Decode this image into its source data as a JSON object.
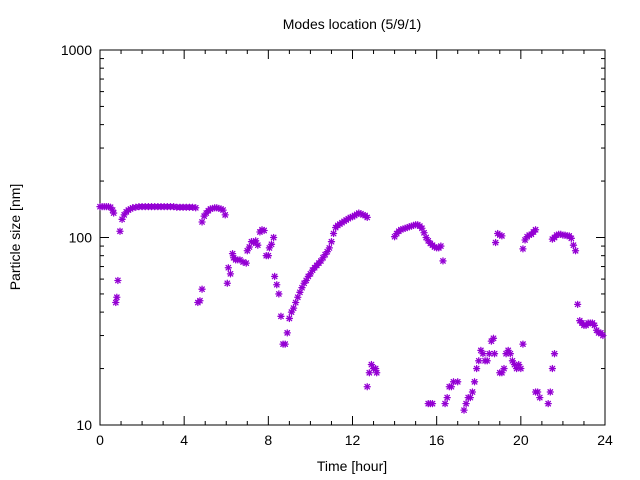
{
  "chart_data": {
    "type": "scatter",
    "title": "Modes location (5/9/1)",
    "xlabel": "Time [hour]",
    "ylabel": "Particle size [nm]",
    "xlim": [
      0,
      24
    ],
    "ylim": [
      10,
      1000
    ],
    "yscale": "log",
    "grid": false,
    "legend": "none",
    "marker_color": "#9400d3",
    "x_ticks": [
      0,
      4,
      8,
      12,
      16,
      20,
      24
    ],
    "x_tick_labels": [
      "0",
      "4",
      "8",
      "12",
      "16",
      "20",
      "24"
    ],
    "y_ticks": [
      10,
      100,
      1000
    ],
    "y_tick_labels": [
      "10",
      "100",
      "1000"
    ],
    "series": [
      {
        "points": [
          [
            0.0,
            146
          ],
          [
            0.1,
            146
          ],
          [
            0.2,
            146
          ],
          [
            0.3,
            146
          ],
          [
            0.4,
            146
          ],
          [
            0.5,
            145
          ],
          [
            0.6,
            140
          ],
          [
            0.65,
            135
          ],
          [
            0.75,
            45
          ],
          [
            0.8,
            48
          ],
          [
            0.85,
            59
          ],
          [
            0.95,
            108
          ],
          [
            1.05,
            125
          ],
          [
            1.15,
            132
          ],
          [
            1.25,
            137
          ],
          [
            1.35,
            140
          ],
          [
            1.45,
            142
          ],
          [
            1.55,
            144
          ],
          [
            1.7,
            145
          ],
          [
            1.85,
            146
          ],
          [
            2.0,
            146
          ],
          [
            2.15,
            146
          ],
          [
            2.3,
            146
          ],
          [
            2.45,
            146
          ],
          [
            2.6,
            146
          ],
          [
            2.75,
            146
          ],
          [
            2.9,
            146
          ],
          [
            3.05,
            146
          ],
          [
            3.2,
            146
          ],
          [
            3.35,
            146
          ],
          [
            3.5,
            146
          ],
          [
            3.65,
            145
          ],
          [
            3.8,
            145
          ],
          [
            3.95,
            145
          ],
          [
            4.1,
            145
          ],
          [
            4.25,
            145
          ],
          [
            4.4,
            145
          ],
          [
            4.55,
            144
          ],
          [
            4.65,
            45
          ],
          [
            4.75,
            46
          ],
          [
            4.85,
            53
          ],
          [
            4.85,
            121
          ],
          [
            4.95,
            130
          ],
          [
            5.05,
            135
          ],
          [
            5.15,
            139
          ],
          [
            5.25,
            142
          ],
          [
            5.35,
            143
          ],
          [
            5.45,
            144
          ],
          [
            5.55,
            144
          ],
          [
            5.65,
            143
          ],
          [
            5.75,
            142
          ],
          [
            5.85,
            140
          ],
          [
            5.95,
            132
          ],
          [
            6.05,
            57
          ],
          [
            6.1,
            69
          ],
          [
            6.2,
            64
          ],
          [
            6.3,
            82
          ],
          [
            6.35,
            78
          ],
          [
            6.45,
            76
          ],
          [
            6.55,
            76
          ],
          [
            6.65,
            76
          ],
          [
            6.8,
            74
          ],
          [
            6.95,
            73
          ],
          [
            7.0,
            85
          ],
          [
            7.1,
            89
          ],
          [
            7.2,
            95
          ],
          [
            7.3,
            94
          ],
          [
            7.4,
            96
          ],
          [
            7.5,
            91
          ],
          [
            7.6,
            107
          ],
          [
            7.7,
            110
          ],
          [
            7.8,
            109
          ],
          [
            7.9,
            80
          ],
          [
            8.0,
            80
          ],
          [
            8.05,
            88
          ],
          [
            8.15,
            92
          ],
          [
            8.25,
            100
          ],
          [
            8.3,
            62
          ],
          [
            8.4,
            56
          ],
          [
            8.5,
            50
          ],
          [
            8.6,
            38
          ],
          [
            8.7,
            27
          ],
          [
            8.8,
            27
          ],
          [
            8.9,
            31
          ],
          [
            9.0,
            37
          ],
          [
            9.1,
            40
          ],
          [
            9.2,
            42
          ],
          [
            9.3,
            45
          ],
          [
            9.4,
            48
          ],
          [
            9.5,
            51
          ],
          [
            9.6,
            54
          ],
          [
            9.7,
            57
          ],
          [
            9.8,
            59
          ],
          [
            9.9,
            62
          ],
          [
            10.0,
            64
          ],
          [
            10.1,
            67
          ],
          [
            10.2,
            69
          ],
          [
            10.3,
            71
          ],
          [
            10.4,
            73
          ],
          [
            10.5,
            75
          ],
          [
            10.6,
            78
          ],
          [
            10.7,
            81
          ],
          [
            10.8,
            84
          ],
          [
            10.9,
            88
          ],
          [
            11.0,
            95
          ],
          [
            11.1,
            105
          ],
          [
            11.2,
            113
          ],
          [
            11.3,
            116
          ],
          [
            11.4,
            118
          ],
          [
            11.5,
            120
          ],
          [
            11.6,
            122
          ],
          [
            11.7,
            124
          ],
          [
            11.8,
            126
          ],
          [
            11.9,
            128
          ],
          [
            12.0,
            129
          ],
          [
            12.1,
            131
          ],
          [
            12.2,
            133
          ],
          [
            12.3,
            135
          ],
          [
            12.4,
            134
          ],
          [
            12.5,
            132
          ],
          [
            12.6,
            131
          ],
          [
            12.7,
            128
          ],
          [
            12.7,
            16
          ],
          [
            12.8,
            19
          ],
          [
            12.9,
            21
          ],
          [
            13.0,
            20
          ],
          [
            13.1,
            20
          ],
          [
            13.15,
            19
          ],
          [
            14.0,
            101
          ],
          [
            14.1,
            105
          ],
          [
            14.2,
            108
          ],
          [
            14.3,
            110
          ],
          [
            14.4,
            111
          ],
          [
            14.5,
            112
          ],
          [
            14.6,
            113
          ],
          [
            14.7,
            114
          ],
          [
            14.8,
            115
          ],
          [
            14.9,
            116
          ],
          [
            15.0,
            117
          ],
          [
            15.1,
            117
          ],
          [
            15.2,
            115
          ],
          [
            15.3,
            112
          ],
          [
            15.4,
            106
          ],
          [
            15.5,
            100
          ],
          [
            15.6,
            96
          ],
          [
            15.7,
            93
          ],
          [
            15.8,
            91
          ],
          [
            15.9,
            89
          ],
          [
            16.0,
            88
          ],
          [
            16.1,
            88
          ],
          [
            16.2,
            90
          ],
          [
            16.3,
            75
          ],
          [
            15.6,
            13
          ],
          [
            15.7,
            13
          ],
          [
            15.8,
            13
          ],
          [
            16.4,
            13
          ],
          [
            16.5,
            14
          ],
          [
            16.6,
            16
          ],
          [
            16.7,
            16
          ],
          [
            16.8,
            17
          ],
          [
            17.0,
            17
          ],
          [
            17.3,
            12
          ],
          [
            17.4,
            13
          ],
          [
            17.5,
            14
          ],
          [
            17.6,
            14
          ],
          [
            17.7,
            15
          ],
          [
            17.8,
            17
          ],
          [
            17.9,
            20
          ],
          [
            18.0,
            22
          ],
          [
            18.1,
            25
          ],
          [
            18.2,
            24
          ],
          [
            18.3,
            22
          ],
          [
            18.4,
            22
          ],
          [
            18.5,
            24
          ],
          [
            18.6,
            28
          ],
          [
            18.7,
            29
          ],
          [
            18.75,
            24
          ],
          [
            18.8,
            94
          ],
          [
            18.9,
            105
          ],
          [
            19.0,
            103
          ],
          [
            19.1,
            102
          ],
          [
            19.0,
            19
          ],
          [
            19.1,
            19
          ],
          [
            19.2,
            20
          ],
          [
            19.3,
            24
          ],
          [
            19.4,
            25
          ],
          [
            19.5,
            24
          ],
          [
            19.6,
            22
          ],
          [
            19.7,
            21
          ],
          [
            19.8,
            20
          ],
          [
            19.9,
            21
          ],
          [
            20.0,
            20
          ],
          [
            20.1,
            27
          ],
          [
            20.1,
            87
          ],
          [
            20.2,
            97
          ],
          [
            20.3,
            101
          ],
          [
            20.4,
            103
          ],
          [
            20.5,
            104
          ],
          [
            20.6,
            107
          ],
          [
            20.7,
            110
          ],
          [
            20.7,
            15
          ],
          [
            20.8,
            15
          ],
          [
            20.9,
            14
          ],
          [
            21.3,
            13
          ],
          [
            21.4,
            15
          ],
          [
            21.5,
            20
          ],
          [
            21.6,
            24
          ],
          [
            21.5,
            98
          ],
          [
            21.6,
            100
          ],
          [
            21.7,
            103
          ],
          [
            21.8,
            104
          ],
          [
            21.9,
            104
          ],
          [
            22.0,
            103
          ],
          [
            22.1,
            103
          ],
          [
            22.2,
            102
          ],
          [
            22.3,
            102
          ],
          [
            22.4,
            99
          ],
          [
            22.5,
            91
          ],
          [
            22.6,
            85
          ],
          [
            22.7,
            44
          ],
          [
            22.8,
            36
          ],
          [
            22.9,
            35
          ],
          [
            23.0,
            34
          ],
          [
            23.1,
            34
          ],
          [
            23.2,
            35
          ],
          [
            23.3,
            35
          ],
          [
            23.4,
            35
          ],
          [
            23.5,
            34
          ],
          [
            23.6,
            32
          ],
          [
            23.7,
            31
          ],
          [
            23.8,
            31
          ],
          [
            23.9,
            30
          ]
        ]
      }
    ]
  }
}
